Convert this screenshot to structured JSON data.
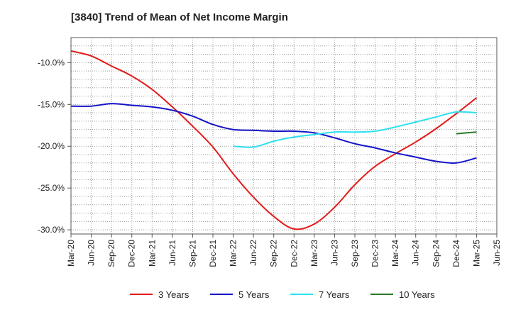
{
  "chart_data": {
    "type": "line",
    "title": "[3840]  Trend of Mean of Net Income Margin",
    "xlabel": "",
    "ylabel": "",
    "ylim": [
      -30.5,
      -7.0
    ],
    "y_ticks": [
      -10.0,
      -15.0,
      -20.0,
      -25.0,
      -30.0
    ],
    "y_tick_labels": [
      "-10.0%",
      "-15.0%",
      "-20.0%",
      "-25.0%",
      "-30.0%"
    ],
    "x_ticks": [
      "Mar-20",
      "Jun-20",
      "Sep-20",
      "Dec-20",
      "Mar-21",
      "Jun-21",
      "Sep-21",
      "Dec-21",
      "Mar-22",
      "Jun-22",
      "Sep-22",
      "Dec-22",
      "Mar-23",
      "Jun-23",
      "Sep-23",
      "Dec-23",
      "Mar-24",
      "Jun-24",
      "Sep-24",
      "Dec-24",
      "Mar-25",
      "Jun-25"
    ],
    "grid": true,
    "legend_position": "bottom",
    "series": [
      {
        "name": "3 Years",
        "color": "#e41a1a",
        "points": [
          [
            "Mar-20",
            -8.6
          ],
          [
            "Jun-20",
            -9.2
          ],
          [
            "Sep-20",
            -10.4
          ],
          [
            "Dec-20",
            -11.6
          ],
          [
            "Mar-21",
            -13.2
          ],
          [
            "Jun-21",
            -15.3
          ],
          [
            "Sep-21",
            -17.6
          ],
          [
            "Dec-21",
            -20.1
          ],
          [
            "Mar-22",
            -23.3
          ],
          [
            "Jun-22",
            -26.1
          ],
          [
            "Sep-22",
            -28.4
          ],
          [
            "Dec-22",
            -29.9
          ],
          [
            "Mar-23",
            -29.3
          ],
          [
            "Jun-23",
            -27.3
          ],
          [
            "Sep-23",
            -24.6
          ],
          [
            "Dec-23",
            -22.4
          ],
          [
            "Mar-24",
            -20.9
          ],
          [
            "Jun-24",
            -19.5
          ],
          [
            "Sep-24",
            -17.9
          ],
          [
            "Dec-24",
            -16.1
          ],
          [
            "Mar-25",
            -14.2
          ]
        ]
      },
      {
        "name": "5 Years",
        "color": "#1414c8",
        "points": [
          [
            "Mar-20",
            -15.2
          ],
          [
            "Jun-20",
            -15.2
          ],
          [
            "Sep-20",
            -14.9
          ],
          [
            "Dec-20",
            -15.1
          ],
          [
            "Mar-21",
            -15.3
          ],
          [
            "Jun-21",
            -15.7
          ],
          [
            "Sep-21",
            -16.4
          ],
          [
            "Dec-21",
            -17.4
          ],
          [
            "Mar-22",
            -18.0
          ],
          [
            "Jun-22",
            -18.1
          ],
          [
            "Sep-22",
            -18.2
          ],
          [
            "Dec-22",
            -18.2
          ],
          [
            "Mar-23",
            -18.4
          ],
          [
            "Jun-23",
            -19.0
          ],
          [
            "Sep-23",
            -19.7
          ],
          [
            "Dec-23",
            -20.2
          ],
          [
            "Mar-24",
            -20.8
          ],
          [
            "Jun-24",
            -21.3
          ],
          [
            "Sep-24",
            -21.8
          ],
          [
            "Dec-24",
            -22.0
          ],
          [
            "Mar-25",
            -21.4
          ]
        ]
      },
      {
        "name": "7 Years",
        "color": "#2ee0f0",
        "points": [
          [
            "Mar-22",
            -20.0
          ],
          [
            "Jun-22",
            -20.1
          ],
          [
            "Sep-22",
            -19.4
          ],
          [
            "Dec-22",
            -18.9
          ],
          [
            "Mar-23",
            -18.6
          ],
          [
            "Jun-23",
            -18.3
          ],
          [
            "Sep-23",
            -18.3
          ],
          [
            "Dec-23",
            -18.2
          ],
          [
            "Mar-24",
            -17.7
          ],
          [
            "Jun-24",
            -17.1
          ],
          [
            "Sep-24",
            -16.5
          ],
          [
            "Dec-24",
            -15.9
          ],
          [
            "Mar-25",
            -16.0
          ]
        ]
      },
      {
        "name": "10 Years",
        "color": "#2a7a2a",
        "points": [
          [
            "Dec-24",
            -18.5
          ],
          [
            "Mar-25",
            -18.3
          ]
        ]
      }
    ]
  }
}
